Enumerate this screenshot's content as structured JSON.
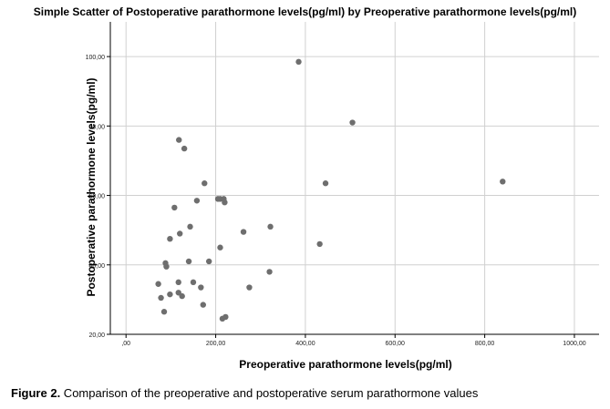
{
  "chart_data": {
    "type": "scatter",
    "title": "Simple Scatter of Postoperative parathormone levels(pg/ml) by Preoperative parathormone levels(pg/ml)",
    "xlabel": "Preoperative parathormone levels(pg/ml)",
    "ylabel": "Postoperative parathormone levels(pg/ml)",
    "xlim": [
      -35,
      1055
    ],
    "ylim": [
      20,
      110
    ],
    "x_ticks": [
      0,
      200,
      400,
      600,
      800,
      1000
    ],
    "x_tick_labels": [
      ",00",
      "200,00",
      "400,00",
      "600,00",
      "800,00",
      "1000,00"
    ],
    "y_ticks": [
      20,
      40,
      60,
      80,
      100
    ],
    "y_tick_labels": [
      "20,00",
      "40,00",
      "60,00",
      "80,00",
      "100,00"
    ],
    "grid": true,
    "point_color": "#6e6e6e",
    "points": [
      {
        "x": 385,
        "y": 98.5
      },
      {
        "x": 505,
        "y": 81.0
      },
      {
        "x": 840,
        "y": 64.0
      },
      {
        "x": 445,
        "y": 63.5
      },
      {
        "x": 118,
        "y": 76.0
      },
      {
        "x": 130,
        "y": 73.5
      },
      {
        "x": 175,
        "y": 63.5
      },
      {
        "x": 205,
        "y": 59.0
      },
      {
        "x": 210,
        "y": 59.0
      },
      {
        "x": 218,
        "y": 59.0
      },
      {
        "x": 220,
        "y": 58.0
      },
      {
        "x": 158,
        "y": 58.5
      },
      {
        "x": 108,
        "y": 56.5
      },
      {
        "x": 143,
        "y": 51.0
      },
      {
        "x": 120,
        "y": 49.0
      },
      {
        "x": 98,
        "y": 47.5
      },
      {
        "x": 210,
        "y": 45.0
      },
      {
        "x": 262,
        "y": 49.5
      },
      {
        "x": 322,
        "y": 51.0
      },
      {
        "x": 432,
        "y": 46.0
      },
      {
        "x": 185,
        "y": 41.0
      },
      {
        "x": 140,
        "y": 41.0
      },
      {
        "x": 88,
        "y": 40.5
      },
      {
        "x": 90,
        "y": 39.5
      },
      {
        "x": 320,
        "y": 38.0
      },
      {
        "x": 72,
        "y": 34.5
      },
      {
        "x": 117,
        "y": 35.0
      },
      {
        "x": 150,
        "y": 35.0
      },
      {
        "x": 167,
        "y": 33.5
      },
      {
        "x": 275,
        "y": 33.5
      },
      {
        "x": 117,
        "y": 32.0
      },
      {
        "x": 98,
        "y": 31.5
      },
      {
        "x": 125,
        "y": 31.0
      },
      {
        "x": 78,
        "y": 30.5
      },
      {
        "x": 172,
        "y": 28.5
      },
      {
        "x": 85,
        "y": 26.5
      },
      {
        "x": 215,
        "y": 24.5
      },
      {
        "x": 222,
        "y": 25.0
      }
    ]
  },
  "caption": {
    "label": "Figure 2.",
    "text": " Comparison of the preoperative and postoperative serum parathormone values"
  }
}
